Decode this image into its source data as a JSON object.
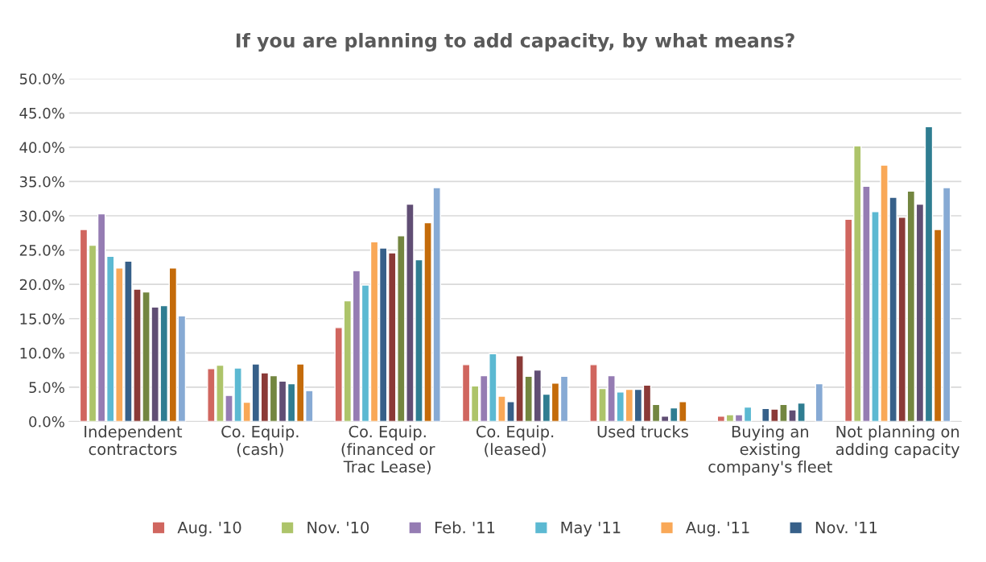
{
  "chart_data": {
    "type": "bar",
    "title": "If you are planning to add capacity, by what means?",
    "categories": [
      "Independent contractors",
      "Co. Equip. (cash)",
      "Co. Equip. (financed or Trac Lease)",
      "Co. Equip. (leased)",
      "Used trucks",
      "Buying an existing company's fleet",
      "Not planning on adding capacity"
    ],
    "series": [
      {
        "name": "Aug. '10",
        "color": "#d0665f",
        "values": [
          28.0,
          7.7,
          13.7,
          8.3,
          8.3,
          0.8,
          29.5
        ]
      },
      {
        "name": "Nov. '10",
        "color": "#adc46a",
        "values": [
          25.7,
          8.2,
          17.6,
          5.2,
          4.8,
          1.0,
          40.2
        ]
      },
      {
        "name": "Feb. '11",
        "color": "#957cb3",
        "values": [
          30.3,
          3.8,
          22.0,
          6.7,
          6.7,
          1.0,
          34.3
        ]
      },
      {
        "name": "May '11",
        "color": "#5cb9d2",
        "values": [
          24.1,
          7.8,
          19.9,
          9.9,
          4.3,
          2.1,
          30.6
        ]
      },
      {
        "name": "Aug. '11",
        "color": "#f9a857",
        "values": [
          22.4,
          2.8,
          26.2,
          3.7,
          4.7,
          null,
          37.4
        ]
      },
      {
        "name": "Nov. '11",
        "color": "#376089",
        "values": [
          23.4,
          8.4,
          25.3,
          2.9,
          4.7,
          1.9,
          32.7
        ]
      },
      {
        "color": "#8b3a37",
        "values": [
          19.3,
          7.1,
          24.6,
          9.6,
          5.3,
          1.8,
          29.8
        ]
      },
      {
        "color": "#738640",
        "values": [
          18.9,
          6.7,
          27.1,
          6.6,
          2.5,
          2.5,
          33.6
        ]
      },
      {
        "color": "#604e74",
        "values": [
          16.7,
          5.9,
          31.7,
          7.5,
          0.8,
          1.7,
          31.7
        ]
      },
      {
        "color": "#2f7d91",
        "values": [
          16.9,
          5.5,
          23.6,
          4.0,
          2.0,
          2.7,
          43.0
        ]
      },
      {
        "color": "#c46b0a",
        "values": [
          22.4,
          8.4,
          29.0,
          5.6,
          2.9,
          null,
          28.0
        ]
      },
      {
        "color": "#87aad4",
        "values": [
          15.4,
          4.5,
          34.1,
          6.6,
          null,
          5.5,
          34.1
        ]
      }
    ],
    "ylim": [
      0,
      50
    ],
    "yticks": [
      {
        "value": 0,
        "label": "0.0%"
      },
      {
        "value": 5,
        "label": "5.0%"
      },
      {
        "value": 10,
        "label": "10.0%"
      },
      {
        "value": 15,
        "label": "15.0%"
      },
      {
        "value": 20,
        "label": "20.0%"
      },
      {
        "value": 25,
        "label": "25.0%"
      },
      {
        "value": 30,
        "label": "30.0%"
      },
      {
        "value": 35,
        "label": "35.0%"
      },
      {
        "value": 40,
        "label": "40.0%"
      },
      {
        "value": 45,
        "label": "45.0%"
      },
      {
        "value": 50,
        "label": "50.0%"
      }
    ],
    "grid": "y",
    "legend": "bottom"
  }
}
